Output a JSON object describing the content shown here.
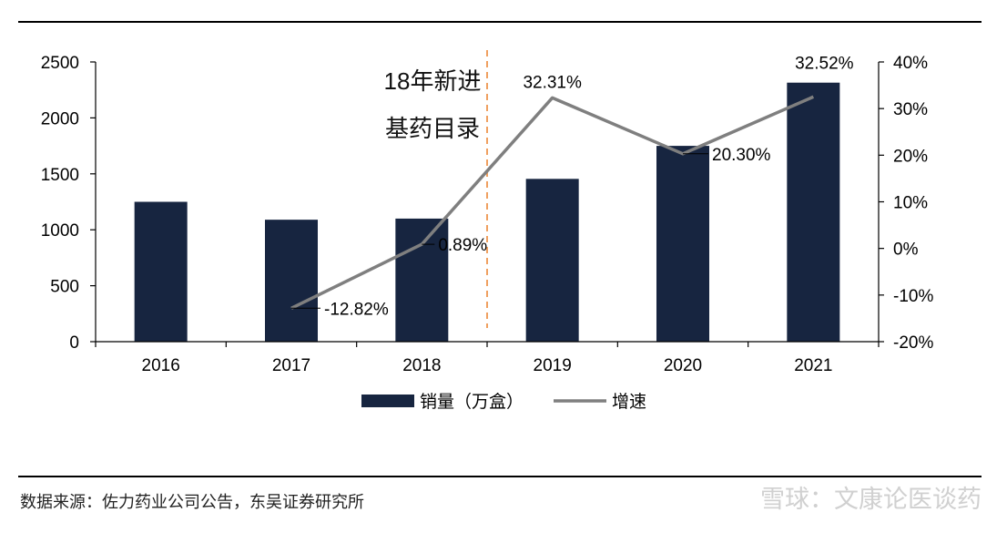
{
  "chart_data": {
    "type": "bar+line",
    "categories": [
      "2016",
      "2017",
      "2018",
      "2019",
      "2020",
      "2021"
    ],
    "series": [
      {
        "name": "销量（万盒）",
        "type": "bar",
        "axis": "left",
        "values": [
          1250,
          1090,
          1100,
          1455,
          1750,
          2315
        ],
        "color": "#172540"
      },
      {
        "name": "增速",
        "type": "line",
        "axis": "right",
        "values": [
          null,
          -12.82,
          0.89,
          32.31,
          20.3,
          32.52
        ],
        "labels": [
          "",
          "-12.82%",
          "0.89%",
          "32.31%",
          "20.30%",
          "32.52%"
        ],
        "color": "#7f7f7f"
      }
    ],
    "y_left": {
      "range": [
        0,
        2500
      ],
      "ticks": [
        0,
        500,
        1000,
        1500,
        2000,
        2500
      ],
      "tick_labels": [
        "0",
        "500",
        "1000",
        "1500",
        "2000",
        "2500"
      ]
    },
    "y_right": {
      "range": [
        -20,
        40
      ],
      "ticks": [
        -20,
        -10,
        0,
        10,
        20,
        30,
        40
      ],
      "tick_labels": [
        "-20%",
        "-10%",
        "0%",
        "10%",
        "20%",
        "30%",
        "40%"
      ]
    },
    "annotations": [
      {
        "text_lines": [
          "18年新进",
          "基药目录"
        ],
        "divider": "between 2018 and 2019",
        "divider_color": "#f0a060"
      }
    ],
    "legend": "bottom-center",
    "grid": false
  },
  "source_note": "数据来源：佐力药业公司公告，东吴证券研究所",
  "watermark": "雪球：文康论医谈药"
}
